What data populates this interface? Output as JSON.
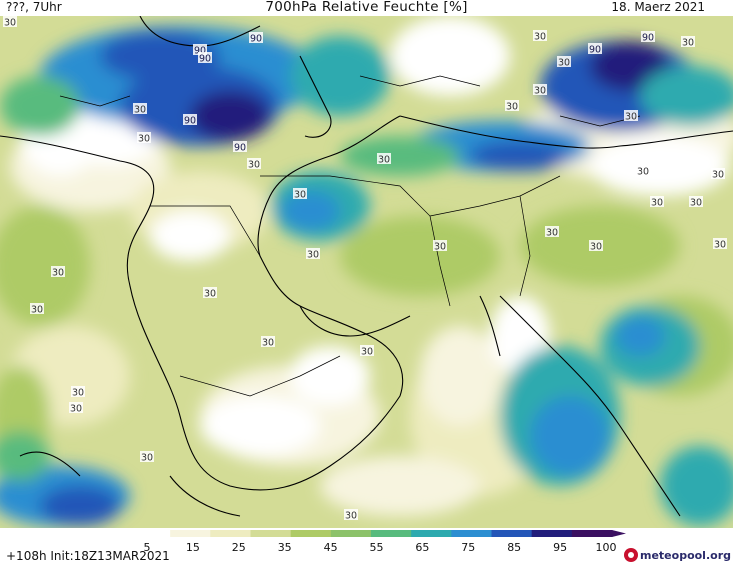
{
  "header": {
    "left_label": "???, 7Uhr",
    "title": "700hPa Relative Feuchte [%]",
    "date": "18. Maerz 2021"
  },
  "footer": {
    "run_info": "+108h  Init:18Z13MAR2021",
    "logo_text": "meteopool.org"
  },
  "legend": {
    "ticks": [
      "5",
      "15",
      "25",
      "35",
      "45",
      "55",
      "65",
      "75",
      "85",
      "95",
      "100"
    ],
    "colors": [
      "#ffffff",
      "#f7f4df",
      "#eeecc0",
      "#d3dc96",
      "#aecb66",
      "#8cc26a",
      "#58bb7e",
      "#2eaaaf",
      "#2c8ed1",
      "#2456b8",
      "#221e7c",
      "#3b1061"
    ]
  },
  "contour_labels": [
    {
      "text": "90"
    },
    {
      "text": "90"
    },
    {
      "text": "90"
    },
    {
      "text": "90"
    },
    {
      "text": "90"
    },
    {
      "text": "90"
    },
    {
      "text": "90"
    },
    {
      "text": "30"
    },
    {
      "text": "30"
    },
    {
      "text": "30"
    },
    {
      "text": "30"
    },
    {
      "text": "30"
    },
    {
      "text": "30"
    },
    {
      "text": "30"
    },
    {
      "text": "30"
    },
    {
      "text": "30"
    },
    {
      "text": "30"
    },
    {
      "text": "30"
    },
    {
      "text": "30"
    },
    {
      "text": "30"
    },
    {
      "text": "30"
    },
    {
      "text": "30"
    },
    {
      "text": "30"
    },
    {
      "text": "30"
    },
    {
      "text": "30"
    },
    {
      "text": "30"
    },
    {
      "text": "30"
    },
    {
      "text": "30"
    },
    {
      "text": "30"
    },
    {
      "text": "30"
    },
    {
      "text": "30"
    },
    {
      "text": "30"
    },
    {
      "text": "30"
    },
    {
      "text": "30"
    },
    {
      "text": "30"
    },
    {
      "text": "30"
    },
    {
      "text": "30"
    }
  ]
}
